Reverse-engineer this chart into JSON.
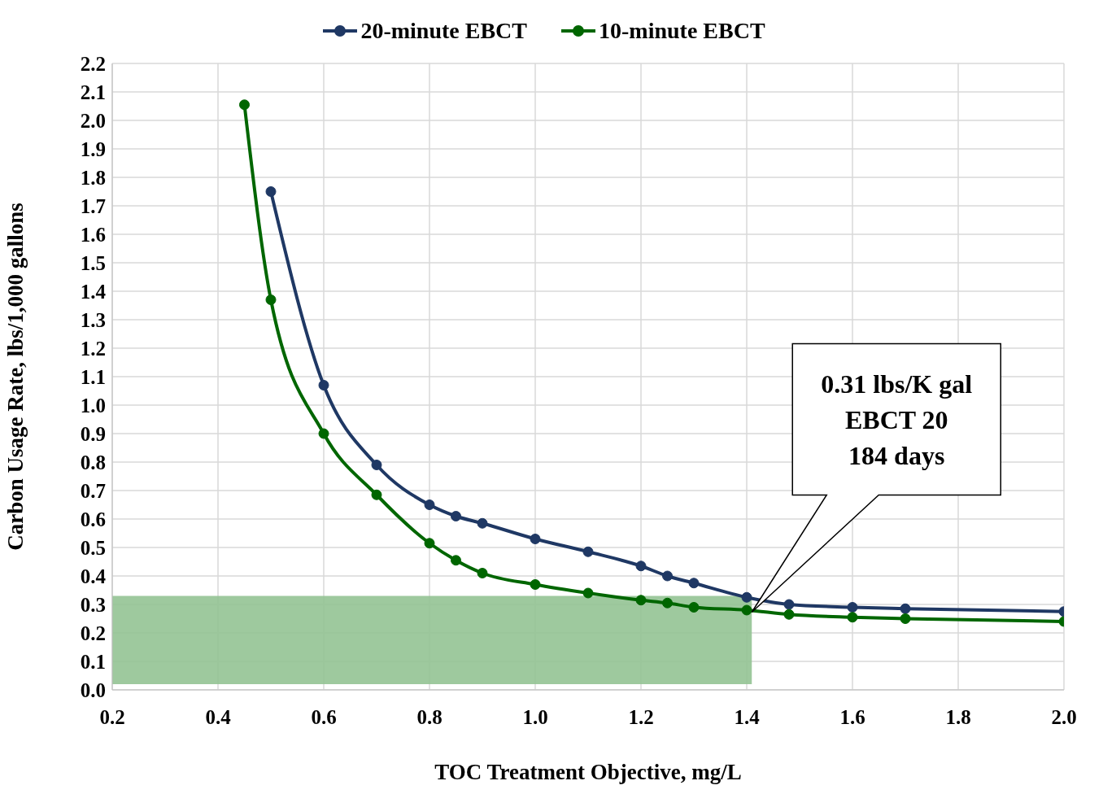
{
  "chart_data": {
    "type": "line",
    "xlabel": "TOC Treatment Objective, mg/L",
    "ylabel": "Carbon Usage Rate, lbs/1,000 gallons",
    "series": [
      {
        "name": "20-minute EBCT",
        "color": "#1f3864",
        "x": [
          0.5,
          0.6,
          0.7,
          0.8,
          0.85,
          0.9,
          1.0,
          1.1,
          1.2,
          1.25,
          1.3,
          1.4,
          1.48,
          1.6,
          1.7,
          2.0
        ],
        "values": [
          1.75,
          1.07,
          0.79,
          0.65,
          0.61,
          0.585,
          0.53,
          0.485,
          0.435,
          0.4,
          0.375,
          0.325,
          0.3,
          0.29,
          0.285,
          0.275
        ]
      },
      {
        "name": "10-minute EBCT",
        "color": "#006600",
        "x": [
          0.45,
          0.5,
          0.6,
          0.7,
          0.8,
          0.85,
          0.9,
          1.0,
          1.1,
          1.2,
          1.25,
          1.3,
          1.4,
          1.48,
          1.6,
          1.7,
          2.0
        ],
        "values": [
          2.055,
          1.37,
          0.9,
          0.685,
          0.515,
          0.455,
          0.41,
          0.37,
          0.34,
          0.315,
          0.305,
          0.29,
          0.28,
          0.265,
          0.255,
          0.25,
          0.24
        ]
      }
    ],
    "xlim": [
      0.2,
      2.0
    ],
    "xticks": [
      0.2,
      0.4,
      0.6,
      0.8,
      {
        "value": 1,
        "label": "1.0"
      },
      1.2,
      1.4,
      1.6,
      1.8,
      {
        "value": 2,
        "label": "2.0"
      }
    ],
    "ylim": [
      0,
      2.2
    ],
    "yticks": [
      {
        "value": 0,
        "label": "0.0"
      },
      0.1,
      0.2,
      0.3,
      0.4,
      0.5,
      0.6,
      0.7,
      0.8,
      0.9,
      {
        "value": 1,
        "label": "1.0"
      },
      1.1,
      1.2,
      1.3,
      1.4,
      1.5,
      1.6,
      1.7,
      1.8,
      1.9,
      {
        "value": 2,
        "label": "2.0"
      },
      2.1,
      2.2
    ],
    "grid": true,
    "legend": "top",
    "marker": "circle",
    "line_style": "solid",
    "bands": [
      {
        "axis": "y",
        "from": 0.02,
        "to": 0.33,
        "color": "#93c393"
      }
    ],
    "annotations": [
      "0.31 lbs/K gal\nEBCT 20\n184 days"
    ]
  }
}
